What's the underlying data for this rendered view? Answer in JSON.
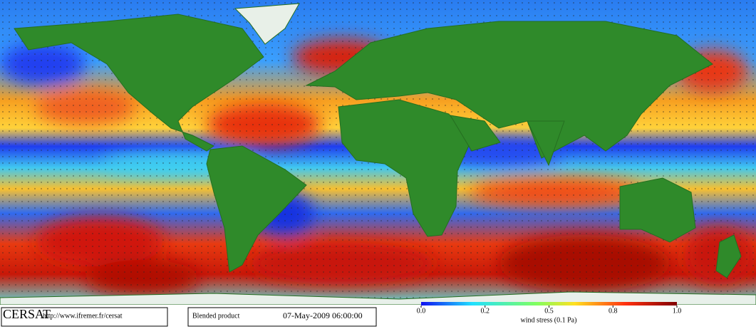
{
  "logo": "CERSAT",
  "url": "http://www.ifremer.fr/cersat",
  "product": "Blended product",
  "timestamp": "07-May-2009 06:00:00",
  "colorbar": {
    "ticks": [
      "0.0",
      "0.2",
      "0.5",
      "0.8",
      "1.0"
    ],
    "label": "wind stress (0.1 Pa)"
  }
}
